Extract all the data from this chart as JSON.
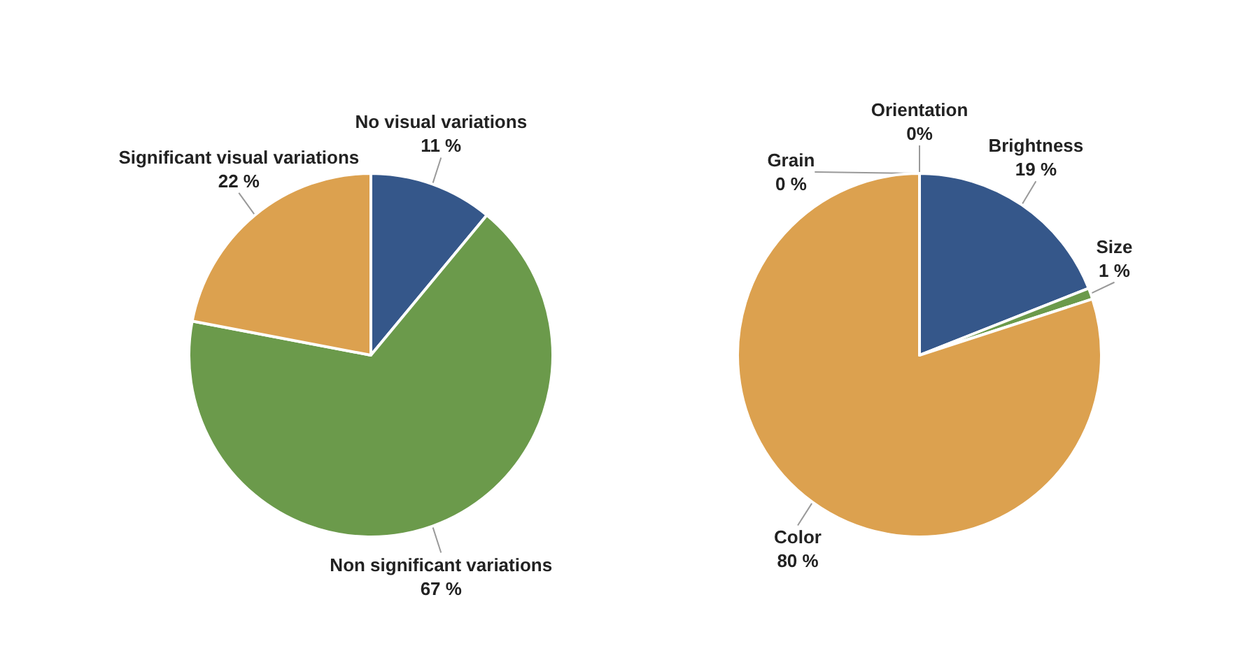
{
  "chart_data": [
    {
      "type": "pie",
      "categories": [
        "No visual variations",
        "Non significant variations",
        "Significant visual variations"
      ],
      "values": [
        11,
        67,
        22
      ],
      "value_labels": [
        "11 %",
        "67 %",
        "22 %"
      ],
      "colors": [
        "#35578a",
        "#6b9a4b",
        "#dca14f"
      ]
    },
    {
      "type": "pie",
      "categories": [
        "Brightness",
        "Size",
        "Color",
        "Orientation",
        "Grain"
      ],
      "values": [
        19,
        1,
        80,
        0,
        0
      ],
      "value_labels": [
        "19 %",
        "1 %",
        "80 %",
        "0%",
        "0 %"
      ],
      "colors": [
        "#35578a",
        "#6b9a4b",
        "#dca14f",
        "#dca14f",
        "#35578a"
      ]
    }
  ]
}
